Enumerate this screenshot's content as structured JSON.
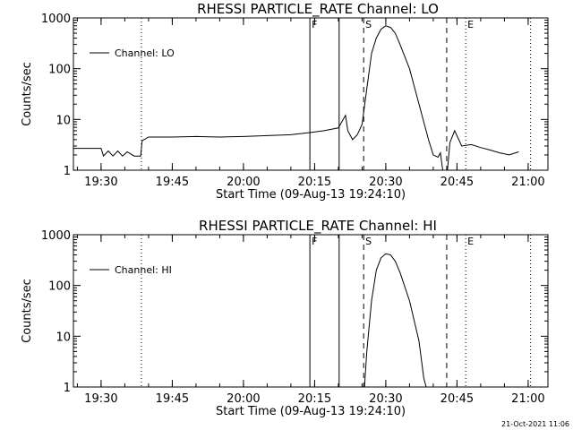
{
  "chart_data": [
    {
      "type": "line",
      "title": "RHESSI PARTICLE_RATE Channel: LO",
      "xlabel": "Start Time (09-Aug-13 19:24:10)",
      "ylabel": "Counts/sec",
      "y_scale": "log",
      "ylim": [
        1,
        1000
      ],
      "xlim": [
        "19:24:10",
        "21:04:10"
      ],
      "y_ticks": [
        "1",
        "10",
        "100",
        "1000"
      ],
      "x_ticks": [
        "19:30",
        "19:45",
        "20:00",
        "20:15",
        "20:30",
        "20:45",
        "21:00"
      ],
      "legend": "top-left",
      "series": [
        {
          "name": "Channel: LO",
          "points": [
            [
              "19:24:10",
              2.7
            ],
            [
              "19:28:00",
              2.7
            ],
            [
              "19:30:00",
              2.7
            ],
            [
              "19:30:30",
              1.9
            ],
            [
              "19:31:30",
              2.4
            ],
            [
              "19:32:30",
              1.9
            ],
            [
              "19:33:30",
              2.4
            ],
            [
              "19:34:30",
              1.9
            ],
            [
              "19:35:30",
              2.3
            ],
            [
              "19:37:00",
              1.9
            ],
            [
              "19:38:20",
              1.9
            ],
            [
              "19:38:40",
              3.8
            ],
            [
              "19:40:00",
              4.5
            ],
            [
              "19:45:00",
              4.5
            ],
            [
              "19:50:00",
              4.6
            ],
            [
              "19:55:00",
              4.5
            ],
            [
              "20:00:00",
              4.6
            ],
            [
              "20:05:00",
              4.8
            ],
            [
              "20:10:00",
              5.0
            ],
            [
              "20:14:00",
              5.5
            ],
            [
              "20:17:00",
              6.0
            ],
            [
              "20:20:00",
              6.8
            ],
            [
              "20:21:30",
              12.0
            ],
            [
              "20:22:00",
              6.0
            ],
            [
              "20:23:00",
              4.0
            ],
            [
              "20:24:00",
              5.0
            ],
            [
              "20:25:00",
              8.0
            ],
            [
              "20:26:00",
              40.0
            ],
            [
              "20:27:00",
              200.0
            ],
            [
              "20:28:00",
              400.0
            ],
            [
              "20:29:00",
              600.0
            ],
            [
              "20:30:00",
              700.0
            ],
            [
              "20:31:00",
              650.0
            ],
            [
              "20:32:00",
              500.0
            ],
            [
              "20:33:00",
              300.0
            ],
            [
              "20:35:00",
              100.0
            ],
            [
              "20:37:00",
              20.0
            ],
            [
              "20:39:00",
              4.0
            ],
            [
              "20:40:00",
              2.0
            ],
            [
              "20:41:00",
              1.8
            ],
            [
              "20:41:30",
              2.2
            ],
            [
              "20:42:00",
              1.0
            ],
            [
              "20:43:00",
              1.0
            ],
            [
              "20:43:30",
              3.5
            ],
            [
              "20:44:30",
              6.0
            ],
            [
              "20:46:00",
              3.0
            ],
            [
              "20:48:00",
              3.2
            ],
            [
              "20:50:00",
              2.8
            ],
            [
              "20:52:00",
              2.5
            ],
            [
              "20:54:00",
              2.2
            ],
            [
              "20:56:00",
              2.0
            ],
            [
              "20:58:00",
              2.3
            ]
          ]
        }
      ],
      "markers": [
        {
          "label": "F",
          "time": "20:14:00",
          "style": "solid"
        },
        {
          "label": "",
          "time": "20:20:10",
          "style": "solid"
        },
        {
          "label": "S",
          "time": "20:25:20",
          "style": "dashed"
        },
        {
          "label": "",
          "time": "20:42:50",
          "style": "dashed"
        },
        {
          "label": "E",
          "time": "20:46:50",
          "style": "dotted"
        },
        {
          "label": "",
          "time": "19:38:30",
          "style": "dotted"
        },
        {
          "label": "",
          "time": "21:00:30",
          "style": "dotted"
        }
      ],
      "grid": false
    },
    {
      "type": "line",
      "title": "RHESSI PARTICLE_RATE Channel: HI",
      "xlabel": "Start Time (09-Aug-13 19:24:10)",
      "ylabel": "Counts/sec",
      "y_scale": "log",
      "ylim": [
        1,
        1000
      ],
      "xlim": [
        "19:24:10",
        "21:04:10"
      ],
      "y_ticks": [
        "1",
        "10",
        "100",
        "1000"
      ],
      "x_ticks": [
        "19:30",
        "19:45",
        "20:00",
        "20:15",
        "20:30",
        "20:45",
        "21:00"
      ],
      "legend": "top-left",
      "series": [
        {
          "name": "Channel: HI",
          "points": [
            [
              "20:25:30",
              1.0
            ],
            [
              "20:26:00",
              5.0
            ],
            [
              "20:27:00",
              50.0
            ],
            [
              "20:28:00",
              200.0
            ],
            [
              "20:29:00",
              350.0
            ],
            [
              "20:30:00",
              420.0
            ],
            [
              "20:31:00",
              400.0
            ],
            [
              "20:32:00",
              300.0
            ],
            [
              "20:33:00",
              180.0
            ],
            [
              "20:35:00",
              50.0
            ],
            [
              "20:37:00",
              8.0
            ],
            [
              "20:38:00",
              1.5
            ],
            [
              "20:38:30",
              1.0
            ]
          ]
        }
      ],
      "markers": [
        {
          "label": "F",
          "time": "20:14:00",
          "style": "solid"
        },
        {
          "label": "",
          "time": "20:20:10",
          "style": "solid"
        },
        {
          "label": "S",
          "time": "20:25:20",
          "style": "dashed"
        },
        {
          "label": "",
          "time": "20:42:50",
          "style": "dashed"
        },
        {
          "label": "E",
          "time": "20:46:50",
          "style": "dotted"
        },
        {
          "label": "",
          "time": "19:38:30",
          "style": "dotted"
        },
        {
          "label": "",
          "time": "21:00:30",
          "style": "dotted"
        }
      ],
      "grid": false
    }
  ],
  "footer": {
    "timestamp": "21-Oct-2021 11:06"
  }
}
